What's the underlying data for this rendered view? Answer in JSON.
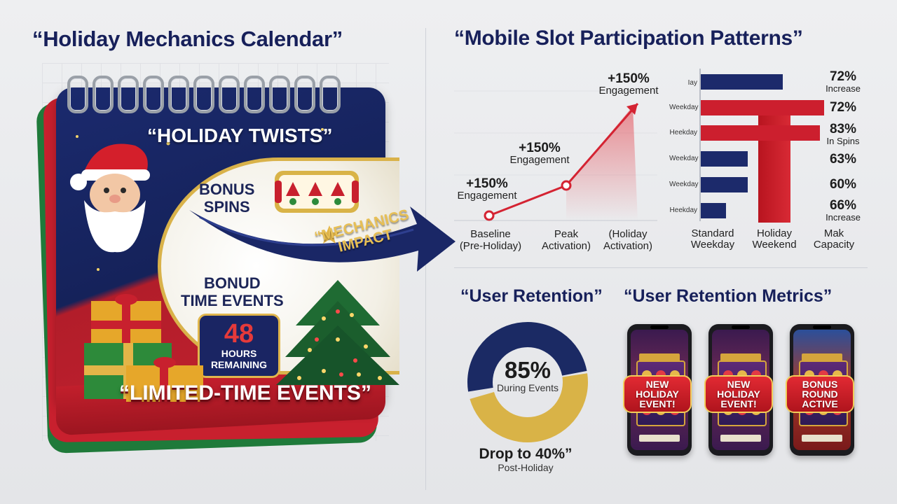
{
  "left": {
    "title": "“Holiday Mechanics Calendar”",
    "calendar": {
      "headline": "“HOLIDAY TWISTS”",
      "bonus_spins": "BONUS\nSPINS",
      "bonus_events": "BONUD\nTIME EVENTS",
      "countdown_number": "48",
      "countdown_label_1": "HOURS",
      "countdown_label_2": "REMAINING",
      "footer": "“LIMITED-TIME EVENTS”",
      "arrow_label": "“MECHANICS\nIMPACT"
    }
  },
  "right": {
    "title": "“Mobile Slot Participation Patterns”",
    "line_chart": {
      "points": [
        {
          "pct": "+150%",
          "note": "Engagement",
          "x_label": "Baseline\n(Pre-Holiday)"
        },
        {
          "pct": "+150%",
          "note": "Engagement",
          "x_label": "Peak\nActivation)"
        },
        {
          "pct": "+150%",
          "note": "Engagement",
          "x_label": "(Holiday\nActivation)"
        }
      ]
    },
    "bar_chart": {
      "rows": [
        {
          "label": "Iay",
          "value": "72%",
          "note": "Increase",
          "color": "#1c2a6b"
        },
        {
          "label": "Weekday",
          "value": "72%",
          "note": "",
          "color": "#cc1f2e"
        },
        {
          "label": "Heekday",
          "value": "83%",
          "note": "In Spins",
          "color": "#cc1f2e"
        },
        {
          "label": "Weekday",
          "value": "63%",
          "note": "",
          "color": "#1c2a6b"
        },
        {
          "label": "Weekday",
          "value": "60%",
          "note": "",
          "color": "#1c2a6b"
        },
        {
          "label": "Heekday",
          "value": "66%",
          "note": "Increase",
          "color": "#1c2a6b"
        }
      ],
      "x_labels": [
        "Standard\nWeekday",
        "Holiday\nWeekend",
        "Mak\nCapacity"
      ]
    },
    "retention": {
      "title": "“User Retention”",
      "center_value": "85%",
      "center_note": "During Events",
      "drop_text": "Drop to 40%”",
      "drop_note": "Post-Holiday",
      "donut_fraction": 0.85,
      "colors": {
        "navy": "#1b2a64",
        "gold": "#d9b347"
      }
    },
    "metrics": {
      "title": "“User Retention Metrics”",
      "phones": [
        {
          "badge": "NEW\nHOLIDAY\nEVENT!"
        },
        {
          "badge": "NEW\nHOLIDAY\nEVENT!"
        },
        {
          "badge": "BONUS\nROUND\nACTIVE"
        }
      ]
    }
  }
}
